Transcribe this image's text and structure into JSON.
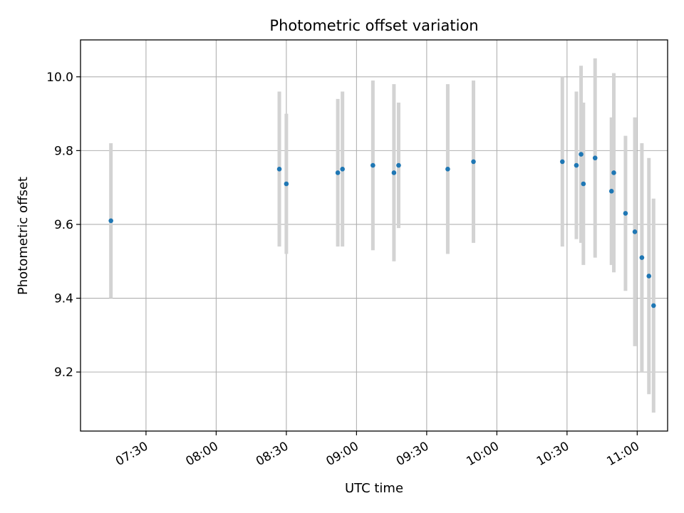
{
  "chart_data": {
    "type": "scatter",
    "title": "Photometric offset variation",
    "xlabel": "UTC time",
    "ylabel": "Photometric offset",
    "x_unit": "UTC time (HH:MM)",
    "xlim": [
      "07:02",
      "11:13"
    ],
    "ylim": [
      9.04,
      10.1
    ],
    "xticks": [
      "07:30",
      "08:00",
      "08:30",
      "09:00",
      "09:30",
      "10:00",
      "10:30",
      "11:00"
    ],
    "yticks": [
      "9.2",
      "9.4",
      "9.6",
      "9.8",
      "10.0"
    ],
    "grid": true,
    "colors": {
      "point": "#1f77b4",
      "errorbar": "#d3d3d3",
      "grid": "#b0b0b0"
    },
    "series": [
      {
        "points": [
          {
            "x": "07:15",
            "y": 9.61,
            "err": 0.21
          },
          {
            "x": "08:27",
            "y": 9.75,
            "err": 0.21
          },
          {
            "x": "08:30",
            "y": 9.71,
            "err": 0.19
          },
          {
            "x": "08:52",
            "y": 9.74,
            "err": 0.2
          },
          {
            "x": "08:54",
            "y": 9.75,
            "err": 0.21
          },
          {
            "x": "09:07",
            "y": 9.76,
            "err": 0.23
          },
          {
            "x": "09:16",
            "y": 9.74,
            "err": 0.24
          },
          {
            "x": "09:18",
            "y": 9.76,
            "err": 0.17
          },
          {
            "x": "09:39",
            "y": 9.75,
            "err": 0.23
          },
          {
            "x": "09:50",
            "y": 9.77,
            "err": 0.22
          },
          {
            "x": "10:28",
            "y": 9.77,
            "err": 0.23
          },
          {
            "x": "10:34",
            "y": 9.76,
            "err": 0.2
          },
          {
            "x": "10:36",
            "y": 9.79,
            "err": 0.24
          },
          {
            "x": "10:37",
            "y": 9.71,
            "err": 0.22
          },
          {
            "x": "10:42",
            "y": 9.78,
            "err": 0.27
          },
          {
            "x": "10:49",
            "y": 9.69,
            "err": 0.2
          },
          {
            "x": "10:50",
            "y": 9.74,
            "err": 0.27
          },
          {
            "x": "10:55",
            "y": 9.63,
            "err": 0.21
          },
          {
            "x": "10:59",
            "y": 9.58,
            "err": 0.31
          },
          {
            "x": "11:02",
            "y": 9.51,
            "err": 0.31
          },
          {
            "x": "11:05",
            "y": 9.46,
            "err": 0.32
          },
          {
            "x": "11:07",
            "y": 9.38,
            "err": 0.29
          }
        ]
      }
    ]
  }
}
